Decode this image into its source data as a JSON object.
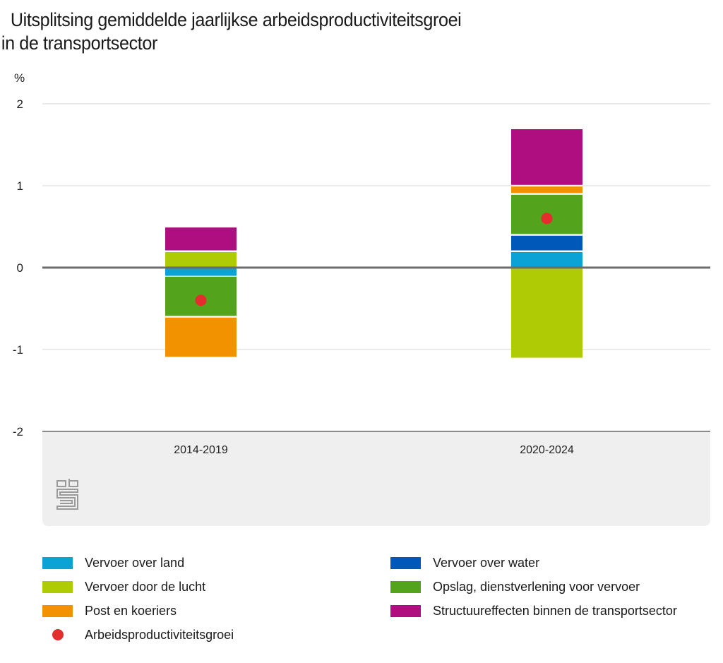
{
  "chart_data": {
    "type": "bar",
    "stacked": true,
    "title": "Uitsplitsing gemiddelde jaarlijkse arbeidsproductiviteitsgroei in de transportsector",
    "title_lines": [
      "Uitsplitsing gemiddelde jaarlijkse arbeidsproductiviteitsgroei",
      "in de transportsector"
    ],
    "ylabel": "%",
    "xlabel": "",
    "ylim": [
      -2,
      2
    ],
    "yticks": [
      2,
      1,
      0,
      -1,
      -2
    ],
    "grid": true,
    "legend_position": "bottom",
    "categories": [
      "2014-2019",
      "2020-2024"
    ],
    "series": [
      {
        "name": "Vervoer over land",
        "color": "#0ba3d6",
        "values": [
          -0.1,
          0.2
        ]
      },
      {
        "name": "Vervoer over water",
        "color": "#0058b8",
        "values": [
          0.0,
          0.2
        ]
      },
      {
        "name": "Vervoer door de lucht",
        "color": "#afcb05",
        "values": [
          0.2,
          -1.1
        ]
      },
      {
        "name": "Opslag, dienstverlening voor vervoer",
        "color": "#53a31d",
        "values": [
          -0.5,
          0.5
        ]
      },
      {
        "name": "Post en koeriers",
        "color": "#f39200",
        "values": [
          -0.5,
          0.1
        ]
      },
      {
        "name": "Structuureffecten binnen de transportsector",
        "color": "#af0e80",
        "values": [
          0.3,
          0.7
        ]
      }
    ],
    "points": {
      "name": "Arbeidsproductiviteitsgroei",
      "color": "#e42e2e",
      "values": [
        -0.4,
        0.6
      ]
    }
  },
  "legend": {
    "left": [
      {
        "label": "Vervoer over land",
        "color": "#0ba3d6",
        "kind": "swatch"
      },
      {
        "label": "Vervoer door de lucht",
        "color": "#afcb05",
        "kind": "swatch"
      },
      {
        "label": "Post en koeriers",
        "color": "#f39200",
        "kind": "swatch"
      },
      {
        "label": "Arbeidsproductiviteitsgroei",
        "color": "#e42e2e",
        "kind": "dot"
      }
    ],
    "right": [
      {
        "label": "Vervoer over water",
        "color": "#0058b8",
        "kind": "swatch"
      },
      {
        "label": "Opslag, dienstverlening voor vervoer",
        "color": "#53a31d",
        "kind": "swatch"
      },
      {
        "label": "Structuureffecten binnen de transportsector",
        "color": "#af0e80",
        "kind": "swatch"
      }
    ]
  },
  "logo": "cbs-logo-icon"
}
